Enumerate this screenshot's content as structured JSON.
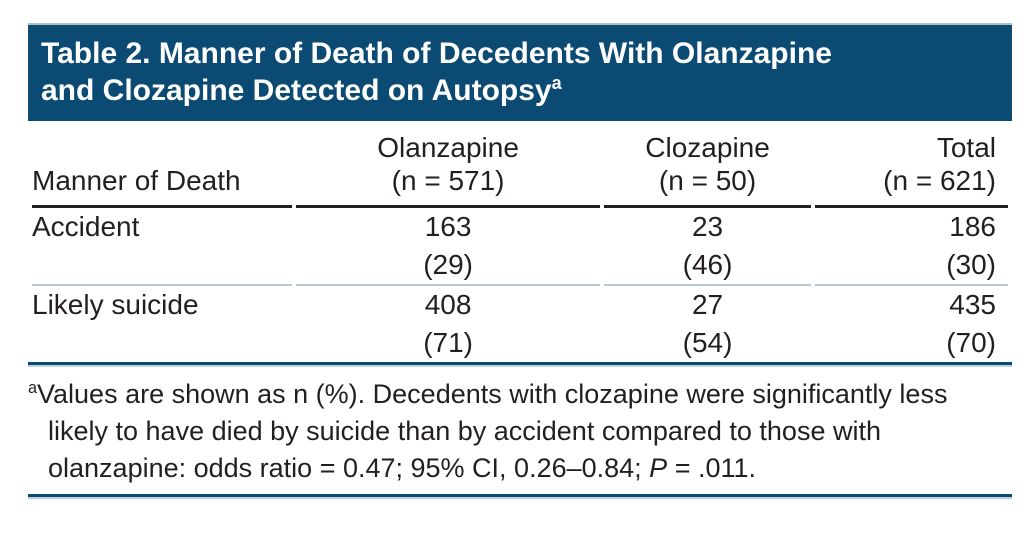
{
  "title": {
    "line1": "Table 2. Manner of Death of Decedents With Olanzapine",
    "line2": "and Clozapine Detected on Autopsy",
    "superscript": "a"
  },
  "table": {
    "row_header_label": "Manner of Death",
    "columns": [
      {
        "name": "Olanzapine",
        "n": "(n = 571)"
      },
      {
        "name": "Clozapine",
        "n": "(n = 50)"
      },
      {
        "name": "Total",
        "n": "(n = 621)"
      }
    ],
    "rows": [
      {
        "label": "Accident",
        "values": [
          "163",
          "23",
          "186"
        ],
        "percents": [
          "(29)",
          "(46)",
          "(30)"
        ]
      },
      {
        "label": "Likely suicide",
        "values": [
          "408",
          "27",
          "435"
        ],
        "percents": [
          "(71)",
          "(54)",
          "(70)"
        ]
      }
    ]
  },
  "footnote": {
    "superscript": "a",
    "line1": "Values are shown as n (%). Decedents with clozapine were significantly less",
    "line2": "likely to have died by suicide than by accident compared to those with",
    "line3_prefix": "olanzapine: odds ratio = 0.47; 95% CI, 0.26–0.84; ",
    "line3_italic": "P",
    "line3_suffix": " = .011."
  },
  "colors": {
    "header_navy": "#0b4a73",
    "light_rule": "#b9c8d8",
    "text": "#231f20"
  }
}
